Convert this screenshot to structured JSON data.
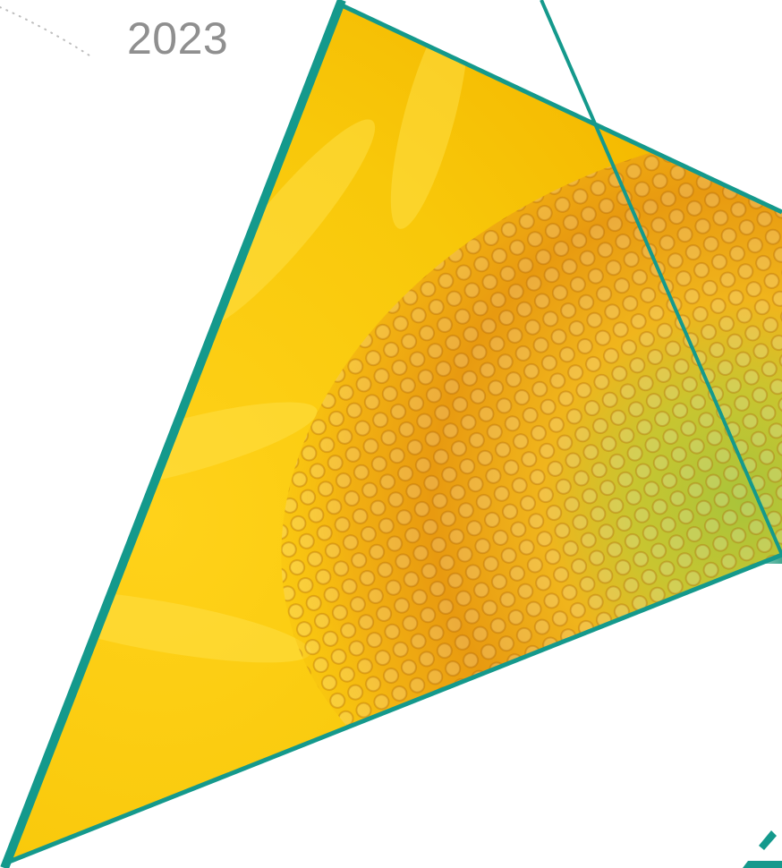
{
  "cover": {
    "year": "2023"
  }
}
